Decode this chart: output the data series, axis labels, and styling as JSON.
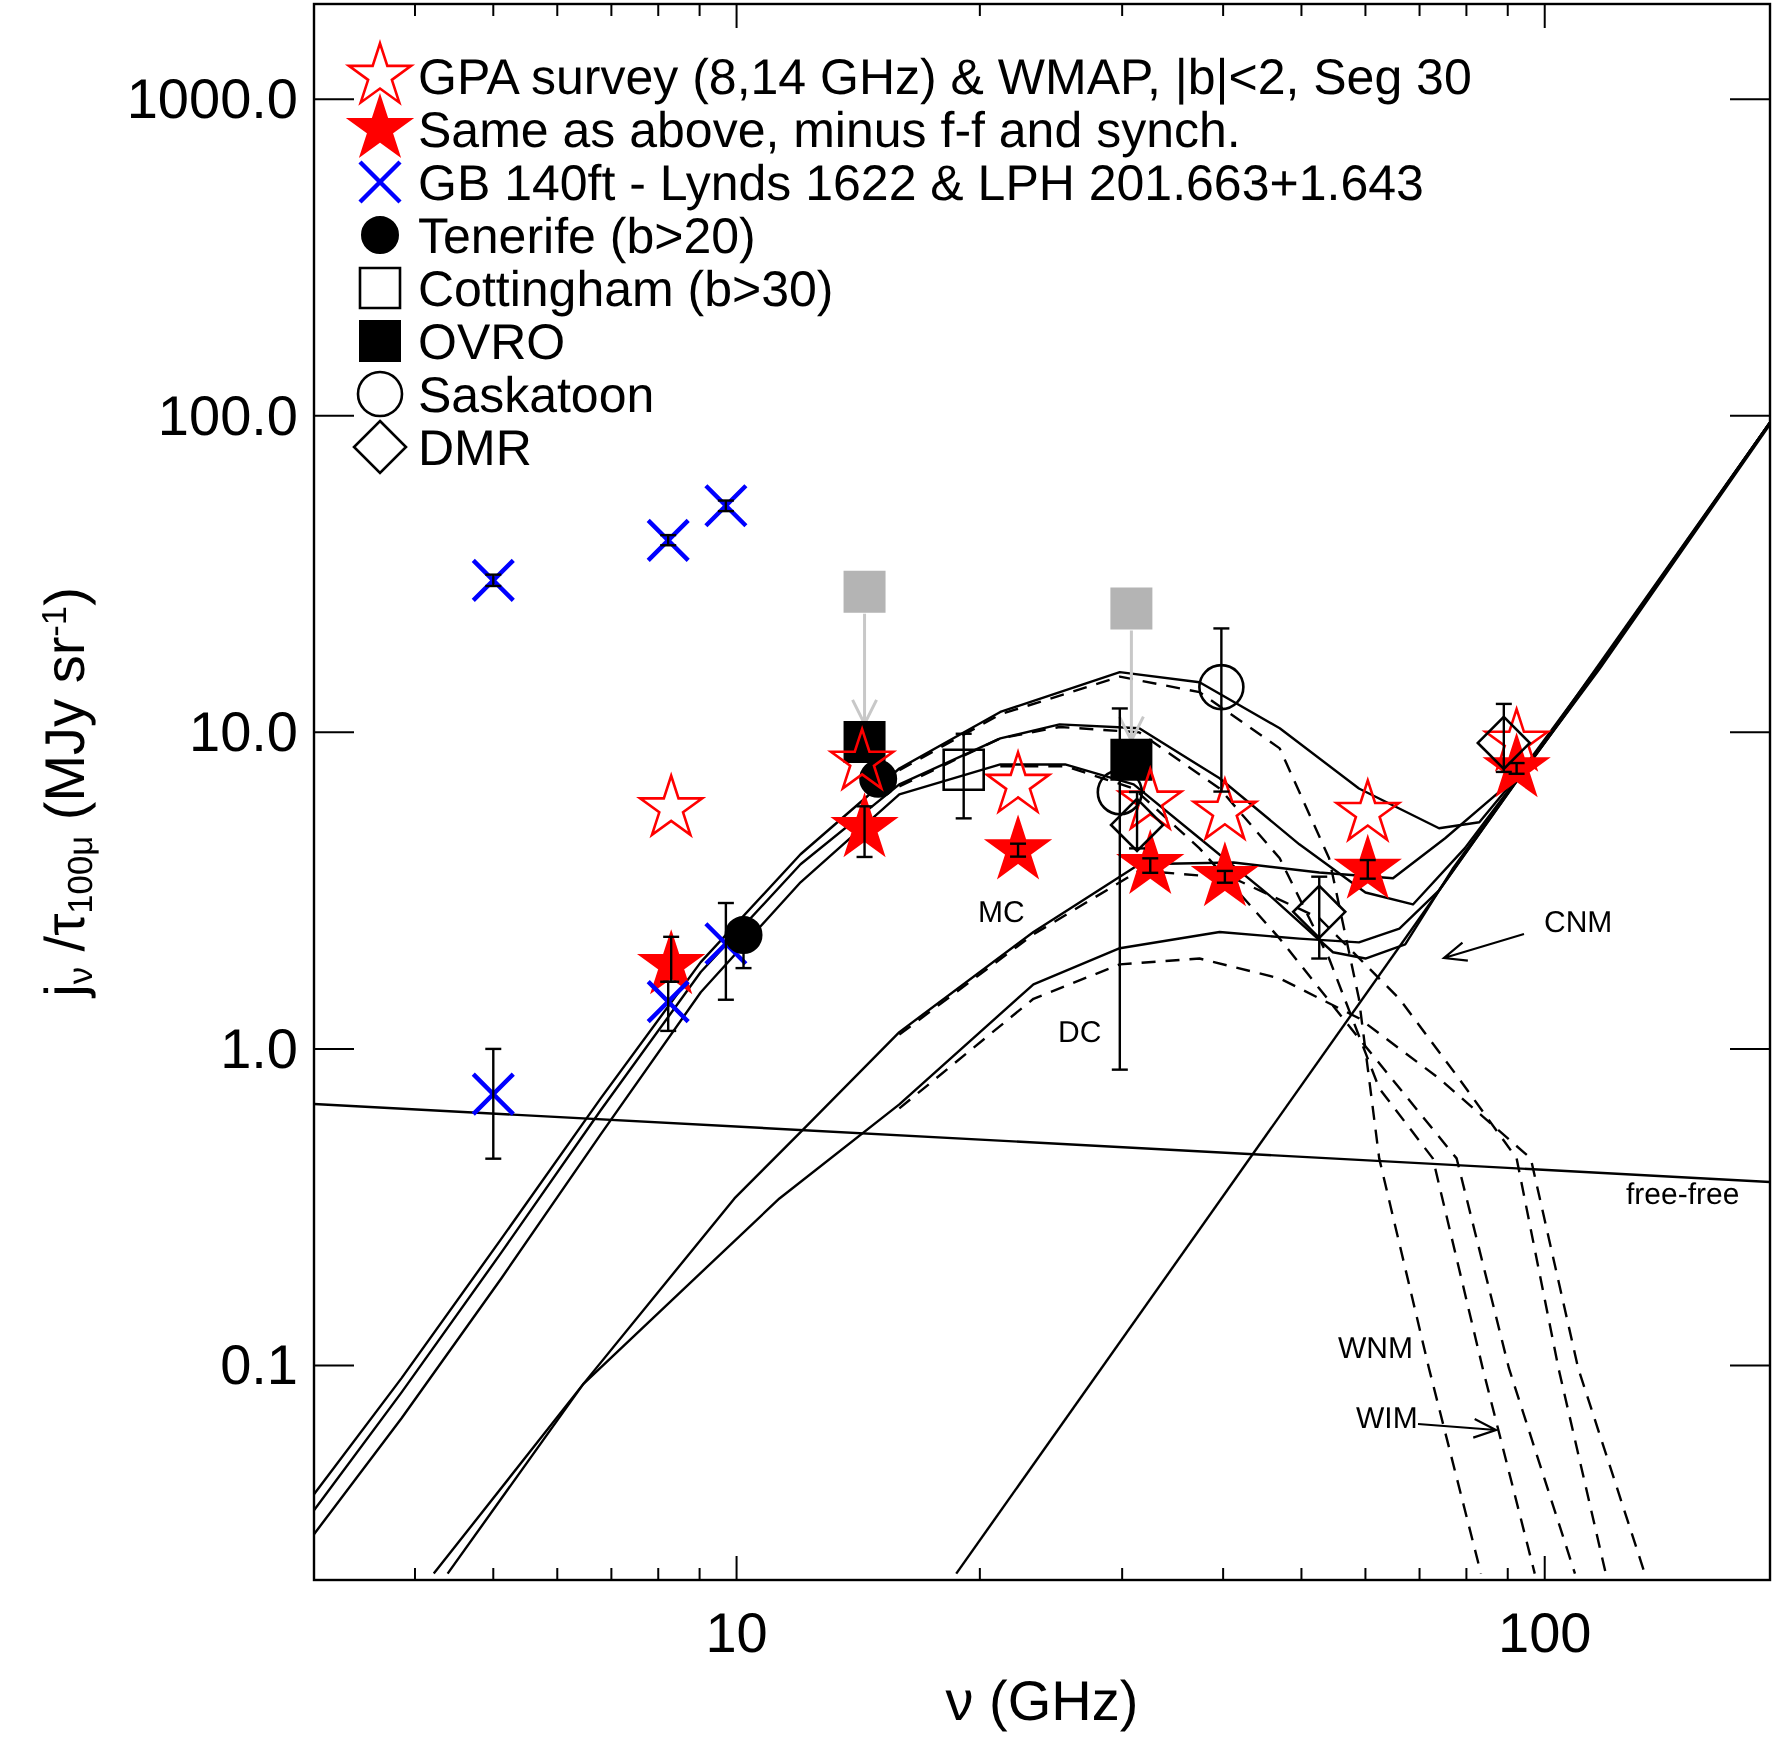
{
  "chart_data": {
    "type": "scatter",
    "xlabel": "ν (GHz)",
    "ylabel": "j$_{ν}$ /τ$_{100μ}$ (MJy sr$^{-1}$)",
    "log": "xy",
    "legend": "top left",
    "xlim": [
      3,
      190
    ],
    "xticks": [
      {
        "value": 4,
        "label": null
      },
      {
        "value": 5,
        "label": null
      },
      {
        "value": 6,
        "label": null
      },
      {
        "value": 7,
        "label": null
      },
      {
        "value": 8,
        "label": null
      },
      {
        "value": 9,
        "label": null
      },
      10,
      {
        "value": 20,
        "label": null
      },
      {
        "value": 30,
        "label": null
      },
      {
        "value": 40,
        "label": null
      },
      {
        "value": 50,
        "label": null
      },
      {
        "value": 60,
        "label": null
      },
      {
        "value": 70,
        "label": null
      },
      {
        "value": 80,
        "label": null
      },
      {
        "value": 90,
        "label": null
      },
      100
    ],
    "ylim": [
      0.021,
      2000
    ],
    "yticks": [
      0.1,
      {
        "value": 1,
        "label": "1.0"
      },
      {
        "value": 10,
        "label": "10.0"
      },
      {
        "value": 100,
        "label": "100.0"
      },
      {
        "value": 1000,
        "label": "1000.0"
      }
    ],
    "series": [
      {
        "type": "line",
        "color": "#000000",
        "line_style": "solid",
        "marker": "none",
        "x": [
          3,
          190
        ],
        "values": [
          0.67,
          0.38
        ]
      },
      {
        "type": "line",
        "color": "#000000",
        "line_style": "solid",
        "marker": "none",
        "x": [
          18.7,
          190
        ],
        "values": [
          0.022,
          95.3
        ]
      },
      {
        "type": "line",
        "color": "#000000",
        "line_style": "solid",
        "marker": "none",
        "x": [
          3,
          3.85,
          5.12,
          6.79,
          9.03,
          12,
          15.9,
          21.2,
          29.8,
          37.4,
          47,
          58.9,
          74,
          83,
          92.9,
          117,
          190
        ],
        "values": [
          0.0392,
          0.0912,
          0.252,
          0.698,
          1.88,
          4.12,
          7.69,
          11.6,
          15.5,
          14.4,
          10.3,
          6.65,
          4.98,
          5.2,
          7.36,
          16.4,
          95.3
        ]
      },
      {
        "type": "line",
        "color": "#000000",
        "line_style": "solid",
        "marker": "none",
        "x": [
          3,
          3.85,
          5.12,
          6.79,
          9.03,
          12,
          15.9,
          21.2,
          25.1,
          31.5,
          39.6,
          49.7,
          60,
          68.7,
          79.6,
          92.9,
          117,
          190
        ],
        "values": [
          0.0349,
          0.0822,
          0.228,
          0.64,
          1.75,
          3.83,
          6.85,
          9.57,
          10.6,
          10.3,
          7.16,
          4.43,
          3.12,
          2.86,
          4.3,
          7.25,
          16.1,
          95.3
        ]
      },
      {
        "type": "line",
        "color": "#000000",
        "line_style": "solid",
        "marker": "none",
        "x": [
          3,
          3.85,
          5.12,
          6.79,
          9.03,
          12,
          15.9,
          21.2,
          25.5,
          31,
          37.4,
          46.1,
          54.7,
          60,
          67.2,
          76.9,
          92.9,
          117,
          190
        ],
        "values": [
          0.0293,
          0.0681,
          0.189,
          0.537,
          1.51,
          3.36,
          6.37,
          7.92,
          7.92,
          6.85,
          4.63,
          2.99,
          2.02,
          1.93,
          2.14,
          3.7,
          7.2,
          15.9,
          94
        ]
      },
      {
        "type": "line",
        "color": "#000000",
        "line_style": "solid",
        "marker": "none",
        "x": [
          4.22,
          6.46,
          9.94,
          12,
          15.9,
          23.3,
          31.5,
          41.2,
          52.6,
          64.9,
          75.3,
          87.7,
          92.9,
          117,
          190
        ],
        "values": [
          0.022,
          0.0873,
          0.337,
          0.546,
          1.13,
          2.34,
          3.83,
          3.88,
          3.61,
          3.46,
          4.63,
          6.46,
          7.2,
          16.1,
          95.3
        ]
      },
      {
        "type": "line",
        "color": "#000000",
        "line_style": "solid",
        "marker": "none",
        "x": [
          4.39,
          6.46,
          11.3,
          15.9,
          23.3,
          29.8,
          39.6,
          49.7,
          58.9,
          66.1,
          74,
          92.9,
          117,
          190
        ],
        "values": [
          0.022,
          0.0873,
          0.337,
          0.668,
          1.6,
          2.08,
          2.34,
          2.23,
          2.17,
          2.4,
          3.17,
          7.16,
          16.1,
          95.3
        ]
      },
      {
        "type": "line",
        "color": "#000000",
        "line_style": "dashed",
        "marker": "none",
        "x": [
          15.9,
          21.2,
          29.8,
          37.4,
          47,
          54.1,
          58.9,
          62.4,
          71.9,
          83.4
        ],
        "values": [
          7.59,
          11.4,
          15,
          13.4,
          8.9,
          4,
          1.44,
          0.451,
          0.098,
          0.022
        ]
      },
      {
        "type": "line",
        "color": "#000000",
        "line_style": "dashed",
        "marker": "none",
        "x": [
          15.9,
          21.2,
          25.1,
          31.5,
          39.6,
          47,
          54.1,
          62.4,
          72.7,
          83.8,
          97.2
        ],
        "values": [
          6.75,
          9.57,
          10.4,
          10,
          6.65,
          4,
          1.93,
          0.751,
          0.451,
          0.098,
          0.022
        ]
      },
      {
        "type": "line",
        "color": "#000000",
        "line_style": "dashed",
        "marker": "none",
        "x": [
          21.2,
          25.5,
          31,
          37.4,
          47,
          58.9,
          77.8,
          90.3,
          109
        ],
        "values": [
          7.82,
          7.82,
          6.65,
          4.3,
          2.23,
          1.08,
          0.451,
          0.098,
          0.022
        ]
      },
      {
        "type": "line",
        "color": "#000000",
        "line_style": "dashed",
        "marker": "none",
        "x": [
          15.9,
          23.3,
          31.5,
          41.2,
          52.6,
          66.1,
          78.3,
          92.3,
          104,
          119
        ],
        "values": [
          1.11,
          2.3,
          3.66,
          3.46,
          2.59,
          1.44,
          0.807,
          0.451,
          0.098,
          0.022
        ]
      },
      {
        "type": "line",
        "color": "#000000",
        "line_style": "dashed",
        "marker": "none",
        "x": [
          15.9,
          23.3,
          29.8,
          37.4,
          47,
          58.9,
          74,
          96.1,
          110,
          133
        ],
        "values": [
          0.649,
          1.44,
          1.85,
          1.93,
          1.67,
          1.25,
          0.807,
          0.451,
          0.098,
          0.022
        ]
      },
      {
        "color": "#b4b4b4",
        "marker": "square",
        "x": [
          14.4,
          30.8
        ],
        "values": [
          27.8,
          24.6
        ]
      },
      {
        "name": "GPA survey (8,14 GHz) & WMAP, |b|<2, Seg 30",
        "color": "#ff0000",
        "marker": "star",
        "x": [
          8.3,
          14.3,
          22.3,
          32.5,
          40.2,
          60.4,
          92.3
        ],
        "values": [
          5.75,
          8.07,
          6.82,
          6.04,
          5.61,
          5.56,
          9.33
        ]
      },
      {
        "name": "Same as above, minus f-f and synch.",
        "color": "#ff0000",
        "marker": "star",
        "x": [
          8.3,
          14.4,
          22.3,
          32.5,
          40.2,
          60.4,
          92.3
        ],
        "values": [
          1.84,
          4.98,
          4.24,
          3.81,
          3.49,
          3.68,
          7.7
        ],
        "errors": [
          [
            1.63,
            2.26
          ],
          [
            4.04,
            5.84
          ],
          [
            4.05,
            4.45
          ],
          [
            3.6,
            4.0
          ],
          [
            3.35,
            3.65
          ],
          [
            3.45,
            3.95
          ],
          [
            7.4,
            8.0
          ]
        ]
      },
      {
        "name": "GB 140ft - Lynds 1622 & LPH 201.663+1.643",
        "color": "#0000ff",
        "marker": "cross",
        "x": [
          5,
          8.23,
          9.7,
          5,
          8.23,
          9.7
        ],
        "values": [
          30.2,
          40.4,
          52,
          0.72,
          1.41,
          2.15
        ],
        "errors": [
          [
            29,
            31.5
          ],
          [
            39,
            42
          ],
          [
            50,
            54
          ],
          [
            0.45,
            1.0
          ],
          [
            1.14,
            1.63
          ],
          [
            1.43,
            2.89
          ]
        ]
      },
      {
        "name": "Tenerife (b>20)",
        "color": "#000000",
        "marker": "circle",
        "x": [
          10.2,
          14.97
        ],
        "values": [
          2.29,
          7.13
        ],
        "errors": [
          [
            1.8,
            2.29
          ],
          null
        ]
      },
      {
        "name": "Cottingham (b>30)",
        "color": "#000000",
        "marker": "square",
        "x": [
          19.1
        ],
        "values": [
          7.62
        ],
        "errors": [
          [
            5.35,
            9.9
          ]
        ]
      },
      {
        "name": "OVRO",
        "color": "#000000",
        "marker": "square",
        "x": [
          14.4,
          30.8
        ],
        "values": [
          9.33,
          8.19
        ]
      },
      {
        "name": "Saskatoon",
        "color": "#000000",
        "marker": "circle",
        "x": [
          39.8,
          29.8
        ],
        "values": [
          13.9,
          6.47
        ],
        "errors": [
          [
            6.5,
            21.3
          ],
          [
            0.86,
            11.9
          ]
        ]
      },
      {
        "name": "DMR",
        "color": "#000000",
        "marker": "diamond",
        "x": [
          31.3,
          52.6,
          89
        ],
        "values": [
          5.1,
          2.71,
          9.26
        ],
        "errors": [
          [
            4.3,
            6.48
          ],
          [
            1.93,
            3.5
          ],
          [
            7.5,
            12.3
          ]
        ]
      }
    ],
    "annotations": [
      "MC",
      "DC",
      "CNM",
      "WNM",
      "WIM",
      "free-free"
    ]
  }
}
